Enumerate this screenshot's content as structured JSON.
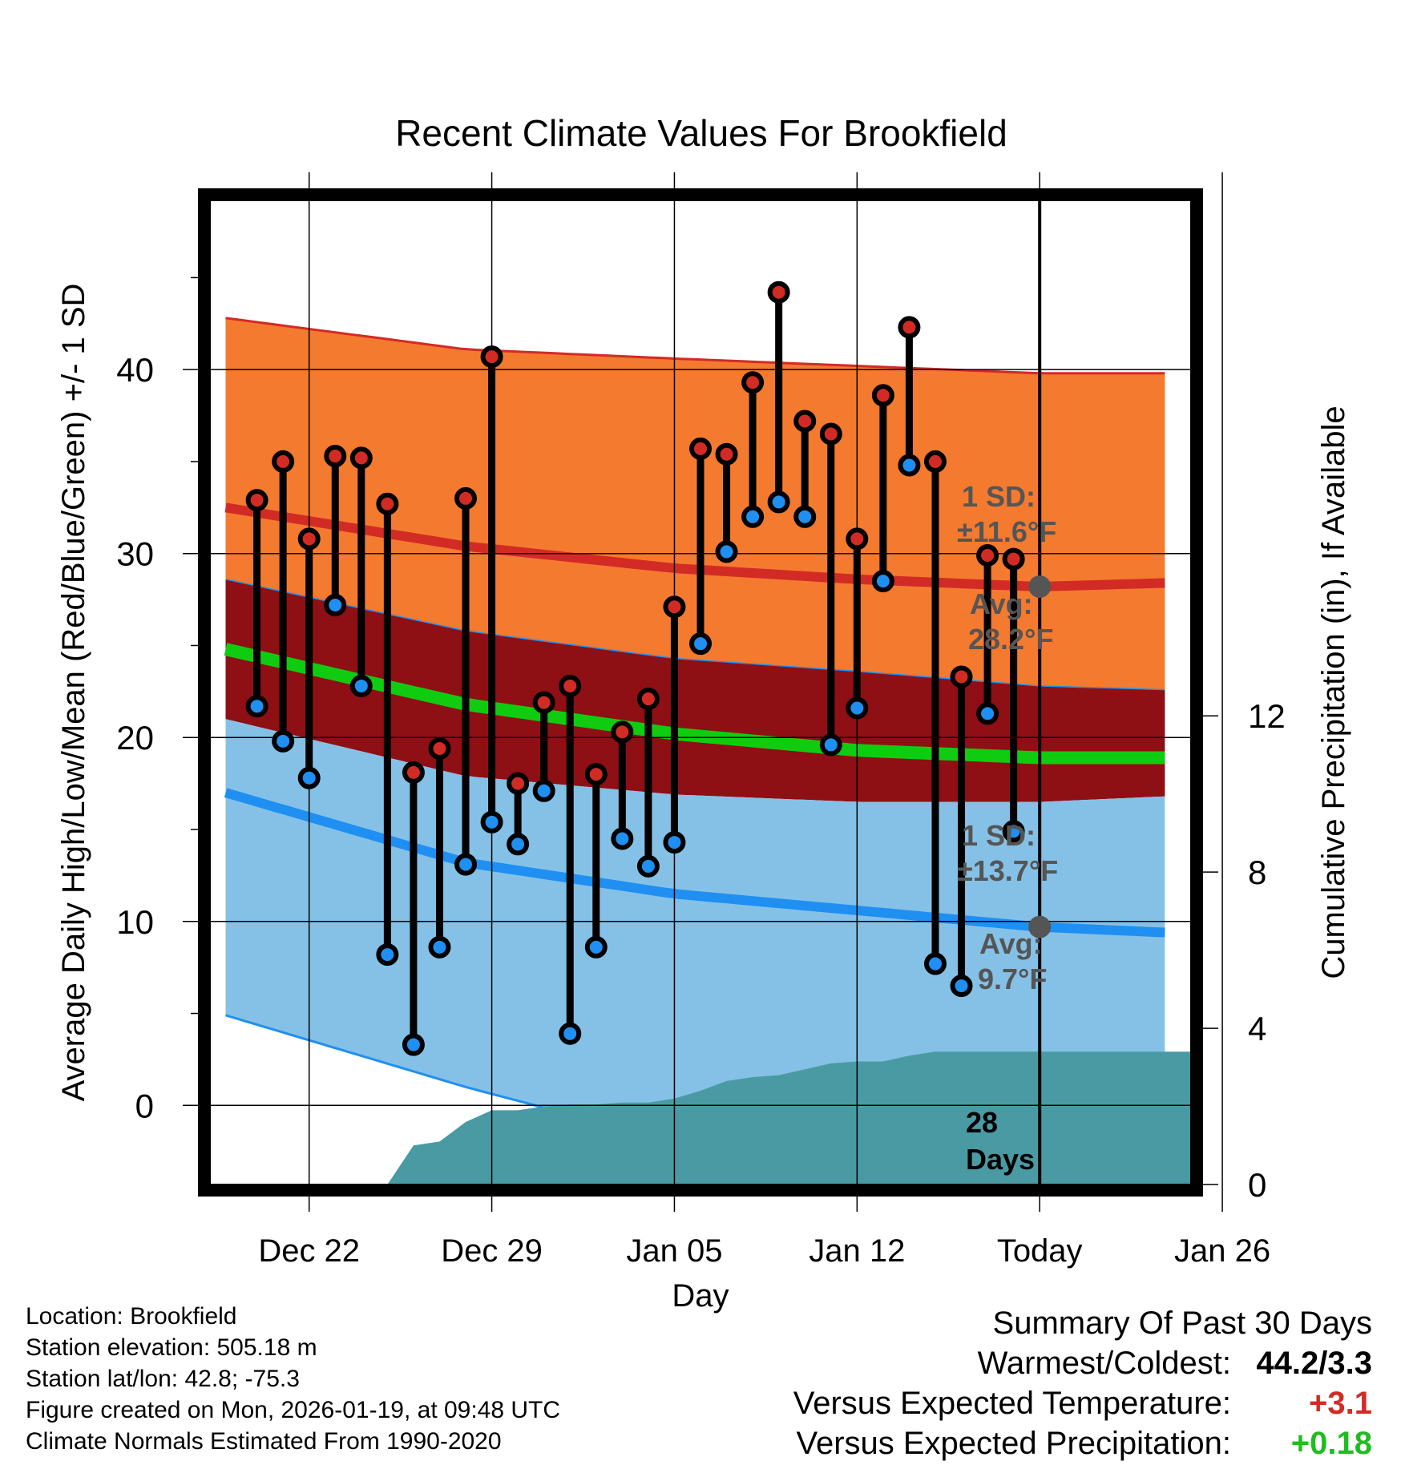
{
  "chart_data": {
    "type": "line",
    "title": "Recent Climate Values For Brookfield",
    "xlabel": "Day",
    "ylabel": "Average Daily High/Low/Mean (Red/Blue/Green) +/- 1 SD",
    "ylabel_right": "Cumulative Precipitation (in), If Available",
    "x_range": [
      -3.8,
      33.8
    ],
    "ylim": [
      -4.3,
      49.2
    ],
    "ylim_right": [
      0,
      25.2
    ],
    "x_tick_positions": [
      0,
      7,
      14,
      21,
      28,
      35
    ],
    "x_tick_labels": [
      "Dec 22",
      "Dec 29",
      "Jan 05",
      "Jan 12",
      "Today",
      "Jan 26"
    ],
    "y_ticks": [
      0,
      10,
      20,
      30,
      40
    ],
    "y_minor_ticks": [
      5,
      15,
      25,
      35,
      45
    ],
    "y_ticks_right": [
      0,
      4,
      8,
      12
    ],
    "today_index": 28,
    "today_label_number": "28",
    "today_label_unit": "Days",
    "daily_highs": [
      32.9,
      35.0,
      30.8,
      35.3,
      35.2,
      32.7,
      18.1,
      19.4,
      33.0,
      40.7,
      17.5,
      21.9,
      22.8,
      18.0,
      20.3,
      22.1,
      27.1,
      35.7,
      35.4,
      39.3,
      44.2,
      37.2,
      36.5,
      30.8,
      38.6,
      42.3,
      35.0,
      23.3,
      29.9,
      29.7
    ],
    "daily_lows": [
      21.7,
      19.8,
      17.8,
      27.2,
      22.8,
      8.2,
      3.3,
      8.6,
      13.1,
      15.4,
      14.2,
      17.1,
      3.9,
      8.6,
      14.5,
      13.0,
      14.3,
      25.1,
      30.1,
      32.0,
      32.8,
      32.0,
      19.6,
      21.6,
      28.5,
      34.8,
      7.7,
      6.5,
      21.3,
      14.9
    ],
    "normal_high": {
      "x": [
        -3.2,
        6,
        14,
        21,
        28,
        32.8
      ],
      "values": [
        32.5,
        30.4,
        29.2,
        28.6,
        28.2,
        28.4
      ]
    },
    "normal_high_upper": {
      "x": [
        -3.2,
        6,
        14,
        21,
        28,
        32.8
      ],
      "values": [
        42.8,
        41.1,
        40.6,
        40.2,
        39.8,
        39.8
      ]
    },
    "normal_low": {
      "x": [
        -3.2,
        6,
        14,
        21,
        28,
        32.8
      ],
      "values": [
        17.0,
        13.2,
        11.5,
        10.6,
        9.7,
        9.4
      ]
    },
    "normal_low_lower": {
      "x": [
        -3.2,
        6,
        10
      ],
      "values": [
        4.9,
        1.0,
        -0.5
      ]
    },
    "normal_mean": {
      "x": [
        -3.2,
        6,
        14,
        21,
        28,
        32.8
      ],
      "values": [
        24.8,
        21.8,
        20.2,
        19.3,
        18.9,
        18.9
      ]
    },
    "mean_band_upper": {
      "x": [
        -3.2,
        6,
        14,
        21,
        28,
        32.8
      ],
      "values": [
        28.6,
        25.8,
        24.3,
        23.6,
        22.8,
        22.6
      ]
    },
    "mean_band_lower": {
      "x": [
        -3.2,
        6,
        14,
        21,
        28,
        32.8
      ],
      "values": [
        21.0,
        17.9,
        16.9,
        16.5,
        16.5,
        16.8
      ]
    },
    "precipitation": {
      "x": [
        -3.2,
        3,
        4,
        5,
        6,
        7,
        8,
        9,
        10,
        11,
        12,
        13,
        14,
        15,
        16,
        17,
        18,
        19,
        20,
        21,
        22,
        23,
        24,
        25,
        26,
        27,
        28,
        33.8
      ],
      "values": [
        0,
        0,
        1.0,
        1.1,
        1.6,
        1.9,
        1.9,
        2.0,
        2.05,
        2.05,
        2.1,
        2.1,
        2.2,
        2.4,
        2.65,
        2.75,
        2.8,
        2.95,
        3.1,
        3.15,
        3.15,
        3.3,
        3.4,
        3.4,
        3.4,
        3.4,
        3.4,
        3.4
      ]
    },
    "annotations": {
      "high_sd_label": "1 SD:",
      "high_sd_value": "±11.6°F",
      "high_avg_label": "Avg:",
      "high_avg_value": "28.2°F",
      "low_sd_label": "1 SD:",
      "low_sd_value": "±13.7°F",
      "low_avg_label": "Avg:",
      "low_avg_value": "9.7°F"
    },
    "colors": {
      "high_band": "#f47a2f",
      "high_line": "#d22b25",
      "mean_band": "#8e0f14",
      "mean_line": "#10cc10",
      "low_band": "#85c1e6",
      "low_line": "#1f8ff2",
      "precip": "#4a9aa3",
      "high_marker": "#d22b25",
      "low_marker": "#1f8ff2",
      "avg_marker": "#555555",
      "annotation": "#555555"
    }
  },
  "info": {
    "location": "Location: Brookfield",
    "elevation": "Station elevation: 505.18 m",
    "latlon": "Station lat/lon: 42.8; -75.3",
    "created": "Figure created on Mon, 2026-01-19, at 09:48 UTC",
    "normals": "Climate Normals Estimated From 1990-2020"
  },
  "summary": {
    "title": "Summary Of Past 30 Days",
    "warm_cold_label": "Warmest/Coldest:",
    "warm_cold_value": "44.2/3.3",
    "temp_label": "Versus Expected Temperature:",
    "temp_value": "+3.1",
    "temp_color": "#d22b25",
    "precip_label": "Versus Expected Precipitation:",
    "precip_value": "+0.18",
    "precip_color": "#22bb22"
  }
}
